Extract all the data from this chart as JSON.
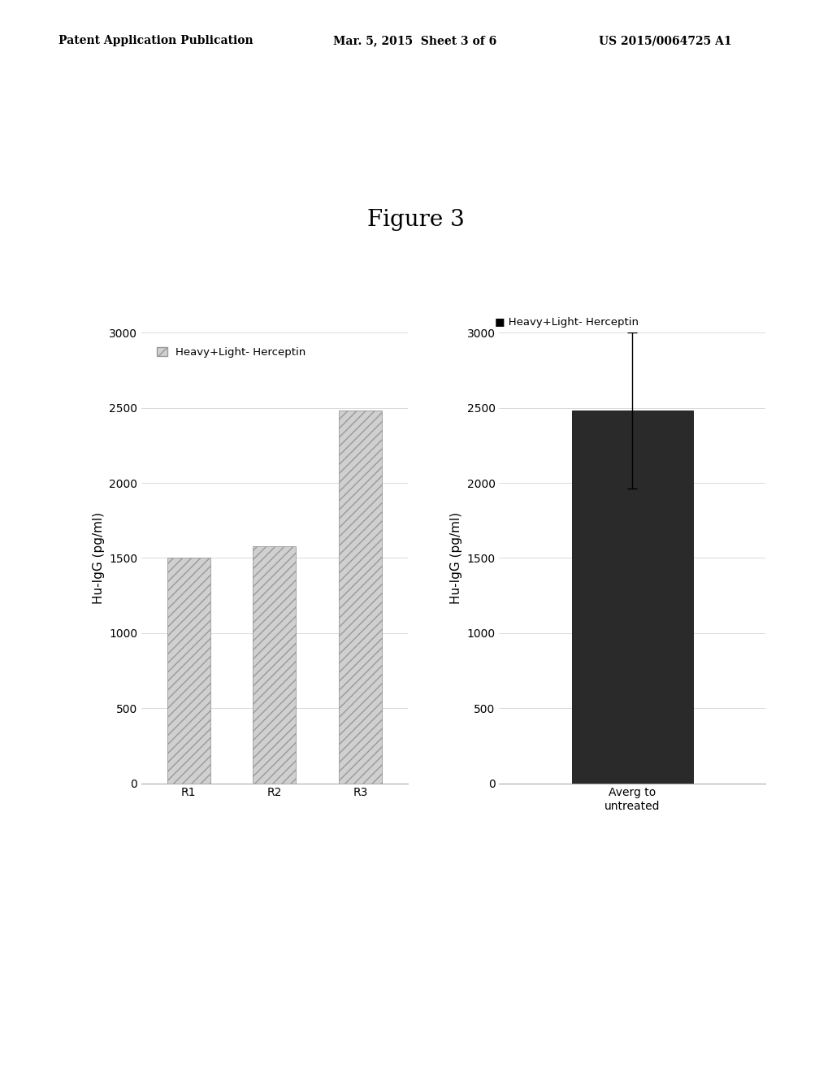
{
  "figure_title": "Figure 3",
  "figure_title_fontsize": 20,
  "figure_title_font": "serif",
  "header_left": "Patent Application Publication",
  "header_mid": "Mar. 5, 2015  Sheet 3 of 6",
  "header_right": "US 2015/0064725 A1",
  "header_fontsize": 10,
  "left_chart": {
    "categories": [
      "R1",
      "R2",
      "R3"
    ],
    "values": [
      1500,
      1580,
      2480
    ],
    "ylabel": "Hu-IgG (pg/ml)",
    "ylim": [
      0,
      3000
    ],
    "yticks": [
      0,
      500,
      1000,
      1500,
      2000,
      2500,
      3000
    ],
    "legend_label": "Heavy+Light- Herceptin",
    "bar_hatch": "///",
    "bar_facecolor": "#d0d0d0",
    "bar_edgecolor": "#999999"
  },
  "right_chart": {
    "categories": [
      "Averg to\nuntreated"
    ],
    "values": [
      2480
    ],
    "error_bars": [
      520
    ],
    "ylabel": "Hu-IgG (pg/ml)",
    "ylim": [
      0,
      3000
    ],
    "yticks": [
      0,
      500,
      1000,
      1500,
      2000,
      2500,
      3000
    ],
    "legend_label": "Heavy+Light- Herceptin",
    "bar_facecolor": "#2a2a2a",
    "bar_edgecolor": "#111111"
  },
  "background_color": "#ffffff",
  "tick_fontsize": 10,
  "label_fontsize": 11,
  "legend_fontsize": 9.5
}
